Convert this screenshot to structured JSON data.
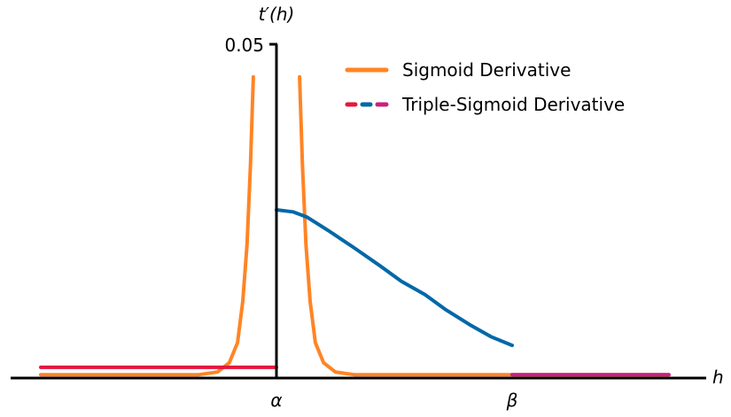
{
  "chart_data": {
    "type": "line",
    "title": "",
    "xlabel": "h",
    "ylabel": "t′(h)",
    "xlim": [
      -1.13,
      1.83
    ],
    "ylim": [
      0,
      0.05
    ],
    "x_ticks": [
      {
        "value": 0,
        "label": "α"
      },
      {
        "value": 1,
        "label": "β"
      }
    ],
    "y_ticks": [
      {
        "value": 0.05,
        "label": "0.05"
      }
    ],
    "grid": false,
    "legend_placement": "top-right",
    "legend": [
      {
        "label": "Sigmoid Derivative",
        "colors": [
          "#ff8425"
        ],
        "style": "solid"
      },
      {
        "label": "Triple-Sigmoid Derivative",
        "colors": [
          "#e4163d",
          "#0068a8",
          "#cc1f7c"
        ],
        "style": "dashed"
      }
    ],
    "series": [
      {
        "legend_entry": 0,
        "color": "#ff8425",
        "segment": "left",
        "x": [
          -1.0,
          -0.5,
          -0.33,
          -0.25,
          -0.2,
          -0.165,
          -0.143,
          -0.125,
          -0.11,
          -0.098
        ],
        "y": [
          0.0005,
          0.0005,
          0.0005,
          0.0009,
          0.0023,
          0.0053,
          0.0115,
          0.02,
          0.032,
          0.0451
        ]
      },
      {
        "legend_entry": 0,
        "color": "#ff8425",
        "segment": "right",
        "x": [
          0.098,
          0.11,
          0.125,
          0.143,
          0.165,
          0.2,
          0.25,
          0.33,
          1.0,
          1.665
        ],
        "y": [
          0.0451,
          0.032,
          0.02,
          0.0115,
          0.0053,
          0.0023,
          0.0009,
          0.0005,
          0.0005,
          0.0005
        ]
      },
      {
        "legend_entry": 1,
        "color": "#e4163d",
        "segment": "h<α",
        "x": [
          -1.0,
          0
        ],
        "y": [
          0.0016,
          0.0016
        ]
      },
      {
        "legend_entry": 1,
        "color": "#0068a8",
        "segment": "α≤h≤β",
        "x": [
          0,
          0.07,
          0.13,
          0.22,
          0.33,
          0.44,
          0.53,
          0.63,
          0.72,
          0.82,
          0.91,
          1.0
        ],
        "y": [
          0.0252,
          0.0249,
          0.0241,
          0.0221,
          0.0195,
          0.0168,
          0.0145,
          0.0125,
          0.0102,
          0.008,
          0.0062,
          0.0049
        ]
      },
      {
        "legend_entry": 1,
        "color": "#cc1f7c",
        "segment": "h>β",
        "x": [
          1.0,
          1.665
        ],
        "y": [
          0.0005,
          0.0005
        ]
      }
    ]
  }
}
